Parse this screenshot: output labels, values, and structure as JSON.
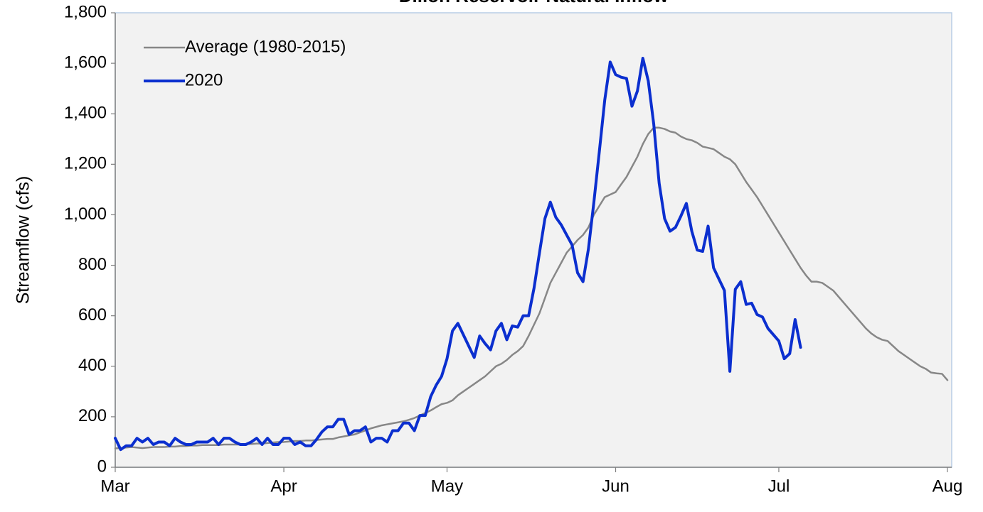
{
  "chart_data": {
    "type": "line",
    "title": "Dillon Reservoir Natural Inflow",
    "y_label": "Streamflow (cfs)",
    "x": [
      0,
      1,
      2,
      3,
      4,
      5,
      6,
      7,
      8,
      9,
      10,
      11,
      12,
      13,
      14,
      15,
      16,
      17,
      18,
      19,
      20,
      21,
      22,
      23,
      24,
      25,
      26,
      27,
      28,
      29,
      30,
      31,
      32,
      33,
      34,
      35,
      36,
      37,
      38,
      39,
      40,
      41,
      42,
      43,
      44,
      45,
      46,
      47,
      48,
      49,
      50,
      51,
      52,
      53,
      54,
      55,
      56,
      57,
      58,
      59,
      60,
      61,
      62,
      63,
      64,
      65,
      66,
      67,
      68,
      69,
      70,
      71,
      72,
      73,
      74,
      75,
      76,
      77,
      78,
      79,
      80,
      81,
      82,
      83,
      84,
      85,
      86,
      87,
      88,
      89,
      90,
      91,
      92,
      93,
      94,
      95,
      96,
      97,
      98,
      99,
      100,
      101,
      102,
      103,
      104,
      105,
      106,
      107,
      108,
      109,
      110,
      111,
      112,
      113,
      114,
      115,
      116,
      117,
      118,
      119,
      120,
      121,
      122,
      123,
      124,
      125,
      126,
      127,
      128,
      129,
      130,
      131,
      132,
      133,
      134,
      135,
      136,
      137,
      138,
      139,
      140,
      141,
      142,
      143,
      144,
      145,
      146,
      147,
      148,
      149,
      150,
      151,
      152,
      153
    ],
    "series": [
      {
        "name": "Average (1980-2015)",
        "color": "#878787",
        "width": 2.5,
        "values": [
          75,
          76,
          78,
          80,
          78,
          76,
          78,
          80,
          80,
          80,
          82,
          82,
          84,
          84,
          86,
          86,
          88,
          88,
          88,
          88,
          90,
          90,
          90,
          90,
          92,
          92,
          94,
          94,
          96,
          98,
          100,
          100,
          102,
          104,
          104,
          106,
          106,
          108,
          110,
          112,
          112,
          118,
          122,
          126,
          130,
          138,
          146,
          154,
          160,
          166,
          170,
          174,
          178,
          182,
          188,
          195,
          205,
          215,
          225,
          238,
          250,
          255,
          265,
          285,
          300,
          315,
          330,
          345,
          360,
          380,
          400,
          410,
          425,
          445,
          460,
          480,
          520,
          565,
          610,
          670,
          730,
          770,
          810,
          850,
          875,
          900,
          920,
          950,
          1000,
          1035,
          1070,
          1080,
          1090,
          1120,
          1150,
          1190,
          1230,
          1280,
          1320,
          1345,
          1345,
          1340,
          1330,
          1325,
          1310,
          1300,
          1295,
          1285,
          1270,
          1265,
          1260,
          1245,
          1230,
          1220,
          1200,
          1165,
          1130,
          1100,
          1070,
          1035,
          1000,
          965,
          930,
          895,
          860,
          825,
          790,
          760,
          735,
          735,
          730,
          715,
          700,
          675,
          650,
          625,
          600,
          575,
          550,
          530,
          515,
          505,
          500,
          480,
          460,
          445,
          430,
          415,
          400,
          390,
          375,
          372,
          370,
          345
        ]
      },
      {
        "name": "2020",
        "color": "#0b2fcf",
        "width": 4,
        "values": [
          115,
          70,
          85,
          85,
          115,
          100,
          115,
          90,
          100,
          100,
          85,
          115,
          100,
          90,
          90,
          100,
          100,
          100,
          115,
          90,
          115,
          115,
          100,
          90,
          90,
          100,
          115,
          90,
          115,
          90,
          90,
          115,
          115,
          90,
          100,
          85,
          85,
          110,
          140,
          160,
          160,
          190,
          190,
          130,
          145,
          145,
          160,
          100,
          115,
          115,
          100,
          145,
          145,
          175,
          175,
          145,
          205,
          205,
          280,
          325,
          360,
          430,
          540,
          570,
          525,
          480,
          435,
          520,
          490,
          465,
          540,
          570,
          505,
          560,
          555,
          600,
          600,
          710,
          850,
          985,
          1050,
          990,
          960,
          920,
          880,
          770,
          735,
          865,
          1050,
          1250,
          1455,
          1605,
          1555,
          1545,
          1540,
          1430,
          1490,
          1620,
          1530,
          1360,
          1125,
          985,
          935,
          950,
          995,
          1045,
          935,
          860,
          855,
          955,
          790,
          745,
          700,
          380,
          705,
          735,
          645,
          650,
          605,
          595,
          550,
          525,
          500,
          430,
          450,
          585,
          475,
          null,
          null,
          null,
          null,
          null,
          null,
          null,
          null,
          null,
          null,
          null,
          null,
          null,
          null,
          null,
          null,
          null,
          null,
          null,
          null,
          null,
          null,
          null,
          null,
          null,
          null,
          null
        ]
      }
    ],
    "xlim": [
      0,
      153
    ],
    "xticks": [
      {
        "value": 0,
        "label": "Mar"
      },
      {
        "value": 31,
        "label": "Apr"
      },
      {
        "value": 61,
        "label": "May"
      },
      {
        "value": 92,
        "label": "Jun"
      },
      {
        "value": 122,
        "label": "Jul"
      },
      {
        "value": 153,
        "label": "Aug"
      }
    ],
    "ylim": [
      0,
      1800
    ],
    "yticks": [
      0,
      200,
      400,
      600,
      800,
      {
        "value": 1000,
        "label": "1,000"
      },
      {
        "value": 1200,
        "label": "1,200"
      },
      {
        "value": 1400,
        "label": "1,400"
      },
      {
        "value": 1600,
        "label": "1,600"
      },
      {
        "value": 1800,
        "label": "1,800"
      }
    ],
    "grid": false,
    "legend": "top-left",
    "background": "#f2f2f2"
  }
}
